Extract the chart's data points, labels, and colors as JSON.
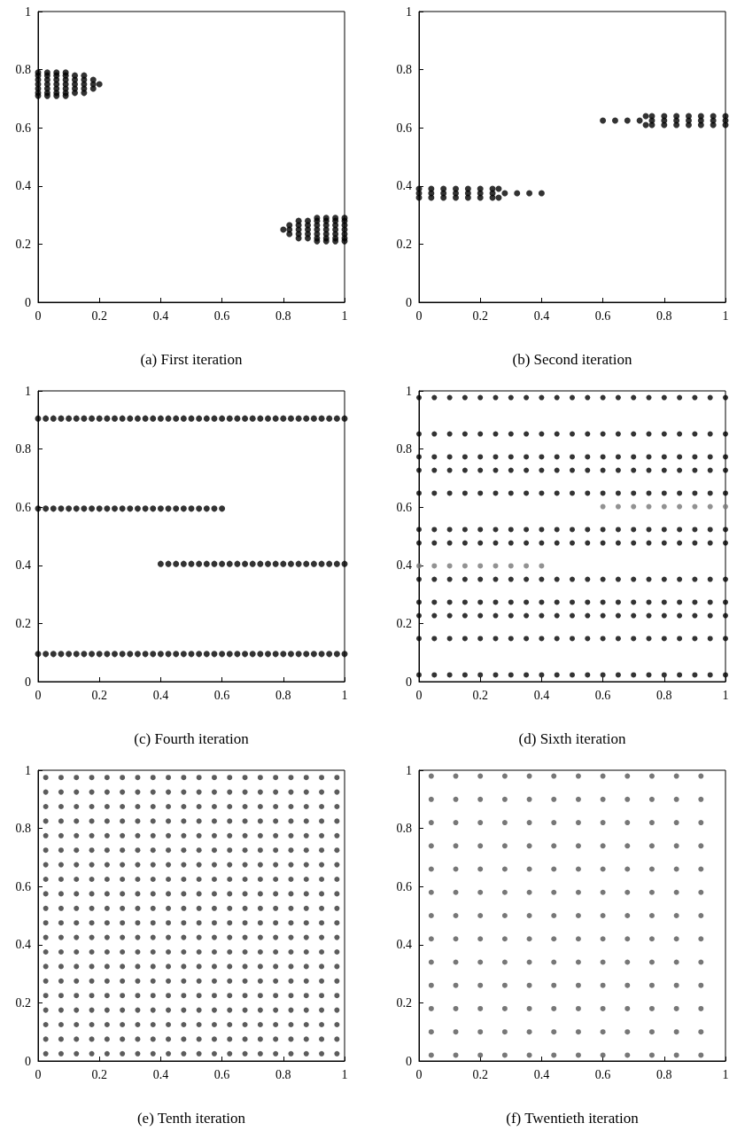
{
  "chart_data": [
    {
      "type": "scatter",
      "xlabel": "(a) First iteration",
      "xlim": [
        0,
        1
      ],
      "ylim": [
        0,
        1
      ],
      "xticks": [
        0,
        0.2,
        0.4,
        0.6,
        0.8,
        1
      ],
      "yticks": [
        0,
        0.2,
        0.4,
        0.6,
        0.8,
        1
      ],
      "marker": "circle",
      "series": [
        {
          "color": "#000000",
          "x": [
            0,
            0.03,
            0.06,
            0.09,
            0,
            0.03,
            0.06,
            0.09,
            0.12,
            0.15,
            0,
            0.03,
            0.06,
            0.09,
            0.12,
            0.15,
            0.18,
            0,
            0.03,
            0.06,
            0.09,
            0.12,
            0.15,
            0.18,
            0.2,
            0,
            0.03,
            0.06,
            0.09,
            0.12,
            0.15,
            0.18,
            0,
            0.03,
            0.06,
            0.09,
            0.12,
            0.15,
            0,
            0.03,
            0.06,
            0.09
          ],
          "values": [
            0.79,
            0.79,
            0.79,
            0.79,
            0.78,
            0.78,
            0.78,
            0.78,
            0.78,
            0.78,
            0.765,
            0.765,
            0.765,
            0.765,
            0.765,
            0.765,
            0.765,
            0.75,
            0.75,
            0.75,
            0.75,
            0.75,
            0.75,
            0.75,
            0.75,
            0.735,
            0.735,
            0.735,
            0.735,
            0.735,
            0.735,
            0.735,
            0.72,
            0.72,
            0.72,
            0.72,
            0.72,
            0.72,
            0.71,
            0.71,
            0.71,
            0.71
          ]
        },
        {
          "color": "#000000",
          "x": [
            1,
            0.97,
            0.94,
            0.91,
            1,
            0.97,
            0.94,
            0.91,
            0.88,
            0.85,
            1,
            0.97,
            0.94,
            0.91,
            0.88,
            0.85,
            0.82,
            1,
            0.97,
            0.94,
            0.91,
            0.88,
            0.85,
            0.82,
            0.8,
            1,
            0.97,
            0.94,
            0.91,
            0.88,
            0.85,
            0.82,
            1,
            0.97,
            0.94,
            0.91,
            0.88,
            0.85,
            1,
            0.97,
            0.94,
            0.91
          ],
          "values": [
            0.29,
            0.29,
            0.29,
            0.29,
            0.28,
            0.28,
            0.28,
            0.28,
            0.28,
            0.28,
            0.265,
            0.265,
            0.265,
            0.265,
            0.265,
            0.265,
            0.265,
            0.25,
            0.25,
            0.25,
            0.25,
            0.25,
            0.25,
            0.25,
            0.25,
            0.235,
            0.235,
            0.235,
            0.235,
            0.235,
            0.235,
            0.235,
            0.22,
            0.22,
            0.22,
            0.22,
            0.22,
            0.22,
            0.21,
            0.21,
            0.21,
            0.21
          ]
        }
      ]
    },
    {
      "type": "scatter",
      "xlabel": "(b) Second iteration",
      "xlim": [
        0,
        1
      ],
      "ylim": [
        0,
        1
      ],
      "xticks": [
        0,
        0.2,
        0.4,
        0.6,
        0.8,
        1
      ],
      "yticks": [
        0,
        0.2,
        0.4,
        0.6,
        0.8,
        1
      ],
      "marker": "circle",
      "series": [
        {
          "color": "#000000",
          "x": [
            0,
            0.04,
            0.08,
            0.12,
            0.16,
            0.2,
            0.24,
            0.26,
            0,
            0.04,
            0.08,
            0.12,
            0.16,
            0.2,
            0.24,
            0.28,
            0.32,
            0.36,
            0.4,
            0,
            0.04,
            0.08,
            0.12,
            0.16,
            0.2,
            0.24,
            0.26
          ],
          "values": [
            0.39,
            0.39,
            0.39,
            0.39,
            0.39,
            0.39,
            0.39,
            0.39,
            0.375,
            0.375,
            0.375,
            0.375,
            0.375,
            0.375,
            0.375,
            0.375,
            0.375,
            0.375,
            0.375,
            0.36,
            0.36,
            0.36,
            0.36,
            0.36,
            0.36,
            0.36,
            0.36
          ]
        },
        {
          "color": "#000000",
          "x": [
            1,
            0.96,
            0.92,
            0.88,
            0.84,
            0.8,
            0.76,
            0.74,
            1,
            0.96,
            0.92,
            0.88,
            0.84,
            0.8,
            0.76,
            0.72,
            0.68,
            0.64,
            0.6,
            1,
            0.96,
            0.92,
            0.88,
            0.84,
            0.8,
            0.76,
            0.74
          ],
          "values": [
            0.64,
            0.64,
            0.64,
            0.64,
            0.64,
            0.64,
            0.64,
            0.64,
            0.625,
            0.625,
            0.625,
            0.625,
            0.625,
            0.625,
            0.625,
            0.625,
            0.625,
            0.625,
            0.625,
            0.61,
            0.61,
            0.61,
            0.61,
            0.61,
            0.61,
            0.61,
            0.61
          ]
        }
      ]
    },
    {
      "type": "scatter",
      "xlabel": "(c) Fourth iteration",
      "xlim": [
        0,
        1
      ],
      "ylim": [
        0,
        1
      ],
      "xticks": [
        0,
        0.2,
        0.4,
        0.6,
        0.8,
        1
      ],
      "yticks": [
        0,
        0.2,
        0.4,
        0.6,
        0.8,
        1
      ],
      "marker": "circle",
      "x": [
        0,
        0.025,
        0.05,
        0.075,
        0.1,
        0.125,
        0.15,
        0.175,
        0.2,
        0.225,
        0.25,
        0.275,
        0.3,
        0.325,
        0.35,
        0.375,
        0.4,
        0.425,
        0.45,
        0.475,
        0.5,
        0.525,
        0.55,
        0.575,
        0.6,
        0.625,
        0.65,
        0.675,
        0.7,
        0.725,
        0.75,
        0.775,
        0.8,
        0.825,
        0.85,
        0.875,
        0.9,
        0.925,
        0.95,
        0.975,
        1
      ],
      "series": [
        {
          "color": "#000000",
          "values": [
            0.905,
            0.905,
            0.905,
            0.905,
            0.905,
            0.905,
            0.905,
            0.905,
            0.905,
            0.905,
            0.905,
            0.905,
            0.905,
            0.905,
            0.905,
            0.905,
            0.905,
            0.905,
            0.905,
            0.905,
            0.905,
            0.905,
            0.905,
            0.905,
            0.905,
            0.905,
            0.905,
            0.905,
            0.905,
            0.905,
            0.905,
            0.905,
            0.905,
            0.905,
            0.905,
            0.905,
            0.905,
            0.905,
            0.905,
            0.905,
            0.905
          ]
        },
        {
          "color": "#000000",
          "x": [
            0,
            0.025,
            0.05,
            0.075,
            0.1,
            0.125,
            0.15,
            0.175,
            0.2,
            0.225,
            0.25,
            0.275,
            0.3,
            0.325,
            0.35,
            0.375,
            0.4,
            0.425,
            0.45,
            0.475,
            0.5,
            0.525,
            0.55,
            0.575,
            0.6
          ],
          "values": [
            0.595,
            0.595,
            0.595,
            0.595,
            0.595,
            0.595,
            0.595,
            0.595,
            0.595,
            0.595,
            0.595,
            0.595,
            0.595,
            0.595,
            0.595,
            0.595,
            0.595,
            0.595,
            0.595,
            0.595,
            0.595,
            0.595,
            0.595,
            0.595,
            0.595
          ]
        },
        {
          "color": "#000000",
          "x": [
            0.4,
            0.425,
            0.45,
            0.475,
            0.5,
            0.525,
            0.55,
            0.575,
            0.6,
            0.625,
            0.65,
            0.675,
            0.7,
            0.725,
            0.75,
            0.775,
            0.8,
            0.825,
            0.85,
            0.875,
            0.9,
            0.925,
            0.95,
            0.975,
            1
          ],
          "values": [
            0.405,
            0.405,
            0.405,
            0.405,
            0.405,
            0.405,
            0.405,
            0.405,
            0.405,
            0.405,
            0.405,
            0.405,
            0.405,
            0.405,
            0.405,
            0.405,
            0.405,
            0.405,
            0.405,
            0.405,
            0.405,
            0.405,
            0.405,
            0.405,
            0.405
          ]
        },
        {
          "color": "#000000",
          "values": [
            0.095,
            0.095,
            0.095,
            0.095,
            0.095,
            0.095,
            0.095,
            0.095,
            0.095,
            0.095,
            0.095,
            0.095,
            0.095,
            0.095,
            0.095,
            0.095,
            0.095,
            0.095,
            0.095,
            0.095,
            0.095,
            0.095,
            0.095,
            0.095,
            0.095,
            0.095,
            0.095,
            0.095,
            0.095,
            0.095,
            0.095,
            0.095,
            0.095,
            0.095,
            0.095,
            0.095,
            0.095,
            0.095,
            0.095,
            0.095,
            0.095
          ]
        }
      ]
    },
    {
      "type": "scatter",
      "xlabel": "(d) Sixth iteration",
      "xlim": [
        0,
        1
      ],
      "ylim": [
        0,
        1
      ],
      "xticks": [
        0,
        0.2,
        0.4,
        0.6,
        0.8,
        1
      ],
      "yticks": [
        0,
        0.2,
        0.4,
        0.6,
        0.8,
        1
      ],
      "marker": "circle",
      "x": [
        0,
        0.05,
        0.1,
        0.15,
        0.2,
        0.25,
        0.3,
        0.35,
        0.4,
        0.45,
        0.5,
        0.55,
        0.6,
        0.65,
        0.7,
        0.75,
        0.8,
        0.85,
        0.9,
        0.95,
        1
      ],
      "series": [
        {
          "color": "#000000",
          "values": [
            0.977,
            0.977,
            0.977,
            0.977,
            0.977,
            0.977,
            0.977,
            0.977,
            0.977,
            0.977,
            0.977,
            0.977,
            0.977,
            0.977,
            0.977,
            0.977,
            0.977,
            0.977,
            0.977,
            0.977,
            0.977
          ]
        },
        {
          "color": "#000000",
          "values": [
            0.852,
            0.852,
            0.852,
            0.852,
            0.852,
            0.852,
            0.852,
            0.852,
            0.852,
            0.852,
            0.852,
            0.852,
            0.852,
            0.852,
            0.852,
            0.852,
            0.852,
            0.852,
            0.852,
            0.852,
            0.852
          ]
        },
        {
          "color": "#000000",
          "values": [
            0.773,
            0.773,
            0.773,
            0.773,
            0.773,
            0.773,
            0.773,
            0.773,
            0.773,
            0.773,
            0.773,
            0.773,
            0.773,
            0.773,
            0.773,
            0.773,
            0.773,
            0.773,
            0.773,
            0.773,
            0.773
          ]
        },
        {
          "color": "#000000",
          "values": [
            0.727,
            0.727,
            0.727,
            0.727,
            0.727,
            0.727,
            0.727,
            0.727,
            0.727,
            0.727,
            0.727,
            0.727,
            0.727,
            0.727,
            0.727,
            0.727,
            0.727,
            0.727,
            0.727,
            0.727,
            0.727
          ]
        },
        {
          "color": "#000000",
          "values": [
            0.648,
            0.648,
            0.648,
            0.648,
            0.648,
            0.648,
            0.648,
            0.648,
            0.648,
            0.648,
            0.648,
            0.648,
            0.648,
            0.648,
            0.648,
            0.648,
            0.648,
            0.648,
            0.648,
            0.648,
            0.648
          ]
        },
        {
          "color": "#777777",
          "x": [
            0.6,
            0.65,
            0.7,
            0.75,
            0.8,
            0.85,
            0.9,
            0.95,
            1
          ],
          "values": [
            0.602,
            0.602,
            0.602,
            0.602,
            0.602,
            0.602,
            0.602,
            0.602,
            0.602
          ]
        },
        {
          "color": "#000000",
          "values": [
            0.523,
            0.523,
            0.523,
            0.523,
            0.523,
            0.523,
            0.523,
            0.523,
            0.523,
            0.523,
            0.523,
            0.523,
            0.523,
            0.523,
            0.523,
            0.523,
            0.523,
            0.523,
            0.523,
            0.523,
            0.523
          ]
        },
        {
          "color": "#000000",
          "values": [
            0.477,
            0.477,
            0.477,
            0.477,
            0.477,
            0.477,
            0.477,
            0.477,
            0.477,
            0.477,
            0.477,
            0.477,
            0.477,
            0.477,
            0.477,
            0.477,
            0.477,
            0.477,
            0.477,
            0.477,
            0.477
          ]
        },
        {
          "color": "#777777",
          "x": [
            0,
            0.05,
            0.1,
            0.15,
            0.2,
            0.25,
            0.3,
            0.35,
            0.4
          ],
          "values": [
            0.398,
            0.398,
            0.398,
            0.398,
            0.398,
            0.398,
            0.398,
            0.398,
            0.398
          ]
        },
        {
          "color": "#000000",
          "values": [
            0.352,
            0.352,
            0.352,
            0.352,
            0.352,
            0.352,
            0.352,
            0.352,
            0.352,
            0.352,
            0.352,
            0.352,
            0.352,
            0.352,
            0.352,
            0.352,
            0.352,
            0.352,
            0.352,
            0.352,
            0.352
          ]
        },
        {
          "color": "#000000",
          "values": [
            0.273,
            0.273,
            0.273,
            0.273,
            0.273,
            0.273,
            0.273,
            0.273,
            0.273,
            0.273,
            0.273,
            0.273,
            0.273,
            0.273,
            0.273,
            0.273,
            0.273,
            0.273,
            0.273,
            0.273,
            0.273
          ]
        },
        {
          "color": "#000000",
          "values": [
            0.227,
            0.227,
            0.227,
            0.227,
            0.227,
            0.227,
            0.227,
            0.227,
            0.227,
            0.227,
            0.227,
            0.227,
            0.227,
            0.227,
            0.227,
            0.227,
            0.227,
            0.227,
            0.227,
            0.227,
            0.227
          ]
        },
        {
          "color": "#000000",
          "values": [
            0.148,
            0.148,
            0.148,
            0.148,
            0.148,
            0.148,
            0.148,
            0.148,
            0.148,
            0.148,
            0.148,
            0.148,
            0.148,
            0.148,
            0.148,
            0.148,
            0.148,
            0.148,
            0.148,
            0.148,
            0.148
          ]
        },
        {
          "color": "#000000",
          "values": [
            0.023,
            0.023,
            0.023,
            0.023,
            0.023,
            0.023,
            0.023,
            0.023,
            0.023,
            0.023,
            0.023,
            0.023,
            0.023,
            0.023,
            0.023,
            0.023,
            0.023,
            0.023,
            0.023,
            0.023,
            0.023
          ]
        }
      ]
    },
    {
      "type": "scatter",
      "xlabel": "(e) Tenth iteration",
      "xlim": [
        0,
        1
      ],
      "ylim": [
        0,
        1
      ],
      "xticks": [
        0,
        0.2,
        0.4,
        0.6,
        0.8,
        1
      ],
      "yticks": [
        0,
        0.2,
        0.4,
        0.6,
        0.8,
        1
      ],
      "marker": "circle",
      "x": [
        0.025,
        0.075,
        0.125,
        0.175,
        0.225,
        0.275,
        0.325,
        0.375,
        0.425,
        0.475,
        0.525,
        0.575,
        0.625,
        0.675,
        0.725,
        0.775,
        0.825,
        0.875,
        0.925,
        0.975
      ],
      "series": [
        {
          "color": "#333333",
          "values": [
            0.975,
            0.975,
            0.975,
            0.975,
            0.975,
            0.975,
            0.975,
            0.975,
            0.975,
            0.975,
            0.975,
            0.975,
            0.975,
            0.975,
            0.975,
            0.975,
            0.975,
            0.975,
            0.975,
            0.975
          ]
        },
        {
          "color": "#333333",
          "values": [
            0.925,
            0.925,
            0.925,
            0.925,
            0.925,
            0.925,
            0.925,
            0.925,
            0.925,
            0.925,
            0.925,
            0.925,
            0.925,
            0.925,
            0.925,
            0.925,
            0.925,
            0.925,
            0.925,
            0.925
          ]
        },
        {
          "color": "#333333",
          "values": [
            0.875,
            0.875,
            0.875,
            0.875,
            0.875,
            0.875,
            0.875,
            0.875,
            0.875,
            0.875,
            0.875,
            0.875,
            0.875,
            0.875,
            0.875,
            0.875,
            0.875,
            0.875,
            0.875,
            0.875
          ]
        },
        {
          "color": "#333333",
          "values": [
            0.825,
            0.825,
            0.825,
            0.825,
            0.825,
            0.825,
            0.825,
            0.825,
            0.825,
            0.825,
            0.825,
            0.825,
            0.825,
            0.825,
            0.825,
            0.825,
            0.825,
            0.825,
            0.825,
            0.825
          ]
        },
        {
          "color": "#333333",
          "values": [
            0.775,
            0.775,
            0.775,
            0.775,
            0.775,
            0.775,
            0.775,
            0.775,
            0.775,
            0.775,
            0.775,
            0.775,
            0.775,
            0.775,
            0.775,
            0.775,
            0.775,
            0.775,
            0.775,
            0.775
          ]
        },
        {
          "color": "#333333",
          "values": [
            0.725,
            0.725,
            0.725,
            0.725,
            0.725,
            0.725,
            0.725,
            0.725,
            0.725,
            0.725,
            0.725,
            0.725,
            0.725,
            0.725,
            0.725,
            0.725,
            0.725,
            0.725,
            0.725,
            0.725
          ]
        },
        {
          "color": "#333333",
          "values": [
            0.675,
            0.675,
            0.675,
            0.675,
            0.675,
            0.675,
            0.675,
            0.675,
            0.675,
            0.675,
            0.675,
            0.675,
            0.675,
            0.675,
            0.675,
            0.675,
            0.675,
            0.675,
            0.675,
            0.675
          ]
        },
        {
          "color": "#333333",
          "values": [
            0.625,
            0.625,
            0.625,
            0.625,
            0.625,
            0.625,
            0.625,
            0.625,
            0.625,
            0.625,
            0.625,
            0.625,
            0.625,
            0.625,
            0.625,
            0.625,
            0.625,
            0.625,
            0.625,
            0.625
          ]
        },
        {
          "color": "#333333",
          "values": [
            0.575,
            0.575,
            0.575,
            0.575,
            0.575,
            0.575,
            0.575,
            0.575,
            0.575,
            0.575,
            0.575,
            0.575,
            0.575,
            0.575,
            0.575,
            0.575,
            0.575,
            0.575,
            0.575,
            0.575
          ]
        },
        {
          "color": "#333333",
          "values": [
            0.525,
            0.525,
            0.525,
            0.525,
            0.525,
            0.525,
            0.525,
            0.525,
            0.525,
            0.525,
            0.525,
            0.525,
            0.525,
            0.525,
            0.525,
            0.525,
            0.525,
            0.525,
            0.525,
            0.525
          ]
        },
        {
          "color": "#333333",
          "values": [
            0.475,
            0.475,
            0.475,
            0.475,
            0.475,
            0.475,
            0.475,
            0.475,
            0.475,
            0.475,
            0.475,
            0.475,
            0.475,
            0.475,
            0.475,
            0.475,
            0.475,
            0.475,
            0.475,
            0.475
          ]
        },
        {
          "color": "#333333",
          "values": [
            0.425,
            0.425,
            0.425,
            0.425,
            0.425,
            0.425,
            0.425,
            0.425,
            0.425,
            0.425,
            0.425,
            0.425,
            0.425,
            0.425,
            0.425,
            0.425,
            0.425,
            0.425,
            0.425,
            0.425
          ]
        },
        {
          "color": "#333333",
          "values": [
            0.375,
            0.375,
            0.375,
            0.375,
            0.375,
            0.375,
            0.375,
            0.375,
            0.375,
            0.375,
            0.375,
            0.375,
            0.375,
            0.375,
            0.375,
            0.375,
            0.375,
            0.375,
            0.375,
            0.375
          ]
        },
        {
          "color": "#333333",
          "values": [
            0.325,
            0.325,
            0.325,
            0.325,
            0.325,
            0.325,
            0.325,
            0.325,
            0.325,
            0.325,
            0.325,
            0.325,
            0.325,
            0.325,
            0.325,
            0.325,
            0.325,
            0.325,
            0.325,
            0.325
          ]
        },
        {
          "color": "#333333",
          "values": [
            0.275,
            0.275,
            0.275,
            0.275,
            0.275,
            0.275,
            0.275,
            0.275,
            0.275,
            0.275,
            0.275,
            0.275,
            0.275,
            0.275,
            0.275,
            0.275,
            0.275,
            0.275,
            0.275,
            0.275
          ]
        },
        {
          "color": "#333333",
          "values": [
            0.225,
            0.225,
            0.225,
            0.225,
            0.225,
            0.225,
            0.225,
            0.225,
            0.225,
            0.225,
            0.225,
            0.225,
            0.225,
            0.225,
            0.225,
            0.225,
            0.225,
            0.225,
            0.225,
            0.225
          ]
        },
        {
          "color": "#333333",
          "values": [
            0.175,
            0.175,
            0.175,
            0.175,
            0.175,
            0.175,
            0.175,
            0.175,
            0.175,
            0.175,
            0.175,
            0.175,
            0.175,
            0.175,
            0.175,
            0.175,
            0.175,
            0.175,
            0.175,
            0.175
          ]
        },
        {
          "color": "#333333",
          "values": [
            0.125,
            0.125,
            0.125,
            0.125,
            0.125,
            0.125,
            0.125,
            0.125,
            0.125,
            0.125,
            0.125,
            0.125,
            0.125,
            0.125,
            0.125,
            0.125,
            0.125,
            0.125,
            0.125,
            0.125
          ]
        },
        {
          "color": "#333333",
          "values": [
            0.075,
            0.075,
            0.075,
            0.075,
            0.075,
            0.075,
            0.075,
            0.075,
            0.075,
            0.075,
            0.075,
            0.075,
            0.075,
            0.075,
            0.075,
            0.075,
            0.075,
            0.075,
            0.075,
            0.075
          ]
        },
        {
          "color": "#333333",
          "values": [
            0.025,
            0.025,
            0.025,
            0.025,
            0.025,
            0.025,
            0.025,
            0.025,
            0.025,
            0.025,
            0.025,
            0.025,
            0.025,
            0.025,
            0.025,
            0.025,
            0.025,
            0.025,
            0.025,
            0.025
          ]
        }
      ]
    },
    {
      "type": "scatter",
      "xlabel": "(f) Twentieth iteration",
      "xlim": [
        0,
        1
      ],
      "ylim": [
        0,
        1
      ],
      "xticks": [
        0,
        0.2,
        0.4,
        0.6,
        0.8,
        1
      ],
      "yticks": [
        0,
        0.2,
        0.4,
        0.6,
        0.8,
        1
      ],
      "marker": "circle",
      "x": [
        0.04,
        0.12,
        0.2,
        0.28,
        0.36,
        0.44,
        0.52,
        0.6,
        0.68,
        0.76,
        0.84,
        0.92
      ],
      "series": [
        {
          "color": "#555555",
          "values": [
            0.98,
            0.98,
            0.98,
            0.98,
            0.98,
            0.98,
            0.98,
            0.98,
            0.98,
            0.98,
            0.98,
            0.98
          ]
        },
        {
          "color": "#555555",
          "values": [
            0.9,
            0.9,
            0.9,
            0.9,
            0.9,
            0.9,
            0.9,
            0.9,
            0.9,
            0.9,
            0.9,
            0.9
          ]
        },
        {
          "color": "#555555",
          "values": [
            0.82,
            0.82,
            0.82,
            0.82,
            0.82,
            0.82,
            0.82,
            0.82,
            0.82,
            0.82,
            0.82,
            0.82
          ]
        },
        {
          "color": "#555555",
          "values": [
            0.74,
            0.74,
            0.74,
            0.74,
            0.74,
            0.74,
            0.74,
            0.74,
            0.74,
            0.74,
            0.74,
            0.74
          ]
        },
        {
          "color": "#555555",
          "values": [
            0.66,
            0.66,
            0.66,
            0.66,
            0.66,
            0.66,
            0.66,
            0.66,
            0.66,
            0.66,
            0.66,
            0.66
          ]
        },
        {
          "color": "#555555",
          "values": [
            0.58,
            0.58,
            0.58,
            0.58,
            0.58,
            0.58,
            0.58,
            0.58,
            0.58,
            0.58,
            0.58,
            0.58
          ]
        },
        {
          "color": "#555555",
          "values": [
            0.5,
            0.5,
            0.5,
            0.5,
            0.5,
            0.5,
            0.5,
            0.5,
            0.5,
            0.5,
            0.5,
            0.5
          ]
        },
        {
          "color": "#555555",
          "values": [
            0.42,
            0.42,
            0.42,
            0.42,
            0.42,
            0.42,
            0.42,
            0.42,
            0.42,
            0.42,
            0.42,
            0.42
          ]
        },
        {
          "color": "#555555",
          "values": [
            0.34,
            0.34,
            0.34,
            0.34,
            0.34,
            0.34,
            0.34,
            0.34,
            0.34,
            0.34,
            0.34,
            0.34
          ]
        },
        {
          "color": "#555555",
          "values": [
            0.26,
            0.26,
            0.26,
            0.26,
            0.26,
            0.26,
            0.26,
            0.26,
            0.26,
            0.26,
            0.26,
            0.26
          ]
        },
        {
          "color": "#555555",
          "values": [
            0.18,
            0.18,
            0.18,
            0.18,
            0.18,
            0.18,
            0.18,
            0.18,
            0.18,
            0.18,
            0.18,
            0.18
          ]
        },
        {
          "color": "#555555",
          "values": [
            0.1,
            0.1,
            0.1,
            0.1,
            0.1,
            0.1,
            0.1,
            0.1,
            0.1,
            0.1,
            0.1,
            0.1
          ]
        },
        {
          "color": "#555555",
          "values": [
            0.02,
            0.02,
            0.02,
            0.02,
            0.02,
            0.02,
            0.02,
            0.02,
            0.02,
            0.02,
            0.02,
            0.02
          ]
        }
      ]
    }
  ]
}
